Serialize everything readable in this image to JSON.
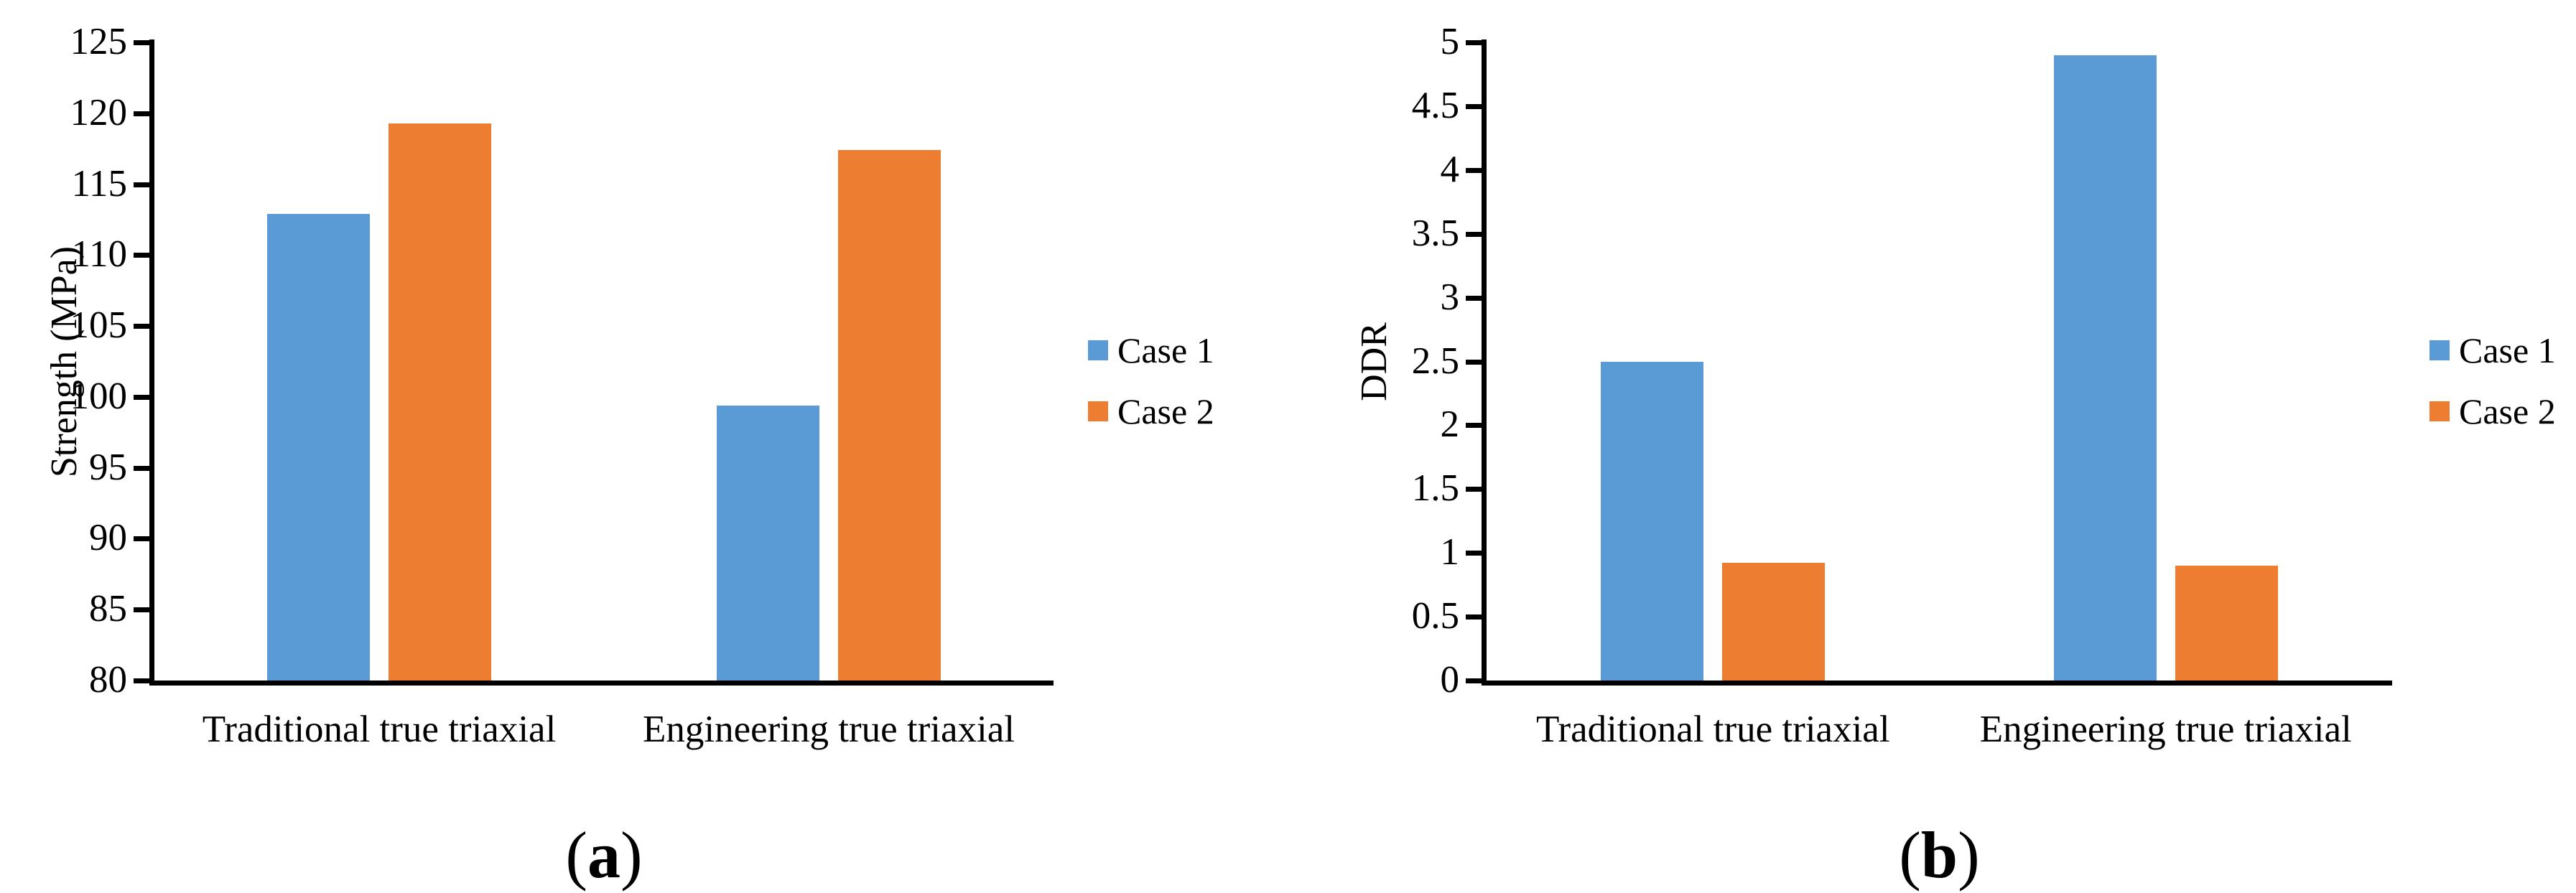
{
  "figure": {
    "panels": [
      {
        "caption_open": "(",
        "caption_letter": "a",
        "caption_close": ")"
      },
      {
        "caption_open": "(",
        "caption_letter": "b",
        "caption_close": ")"
      }
    ]
  },
  "colors": {
    "case1_blue": "#5B9BD5",
    "case2_orange": "#ED7D31",
    "axis_black": "#000000"
  },
  "chart_data": [
    {
      "type": "bar",
      "title": "",
      "xlabel": "",
      "ylabel": "Strength (MPa)",
      "ylim": [
        80,
        125
      ],
      "ytick_step": 5,
      "yticks": [
        "125",
        "120",
        "115",
        "110",
        "105",
        "100",
        "95",
        "90",
        "85",
        "80"
      ],
      "categories": [
        "Traditional true triaxial",
        "Engineering true triaxial"
      ],
      "series": [
        {
          "name": "Case 1",
          "color": "#5B9BD5",
          "values": [
            112.9,
            99.4
          ]
        },
        {
          "name": "Case 2",
          "color": "#ED7D31",
          "values": [
            119.3,
            117.4
          ]
        }
      ],
      "legend_position": "right",
      "grid": false,
      "caption": "(a)"
    },
    {
      "type": "bar",
      "title": "",
      "xlabel": "",
      "ylabel": "DDR",
      "ylim": [
        0,
        5
      ],
      "ytick_step": 0.5,
      "yticks": [
        "5",
        "4.5",
        "4",
        "3.5",
        "3",
        "2.5",
        "2",
        "1.5",
        "1",
        "0.5",
        "0"
      ],
      "categories": [
        "Traditional true triaxial",
        "Engineering true triaxial"
      ],
      "series": [
        {
          "name": "Case 1",
          "color": "#5B9BD5",
          "values": [
            2.5,
            4.9
          ]
        },
        {
          "name": "Case 2",
          "color": "#ED7D31",
          "values": [
            0.92,
            0.9
          ]
        }
      ],
      "legend_position": "right",
      "grid": false,
      "caption": "(b)"
    }
  ]
}
